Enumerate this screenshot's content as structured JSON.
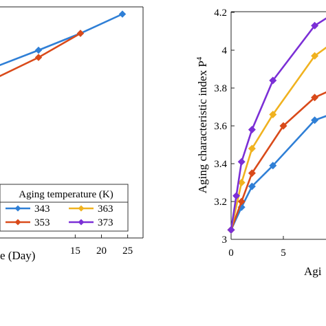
{
  "chart_data": [
    {
      "type": "line",
      "title": "",
      "xlabel": "e (Day)",
      "ylabel": "",
      "xlim": [
        -1.5,
        25
      ],
      "x_ticks": [
        15,
        20,
        25
      ],
      "legend": {
        "title": "Aging temperature (K)",
        "placement": "bottom-right",
        "columns": 2,
        "entries": [
          "343",
          "363",
          "353",
          "373"
        ]
      },
      "series": [
        {
          "name": "343",
          "color": "#2f7fd6",
          "marker": "diamond",
          "x": [
            -1.5,
            8,
            16,
            24
          ],
          "y": [
            0.7,
            0.78,
            0.85,
            0.93
          ]
        },
        {
          "name": "353",
          "color": "#d94a1a",
          "marker": "diamond",
          "x": [
            -1.5,
            8,
            16
          ],
          "y": [
            0.65,
            0.75,
            0.85
          ]
        },
        {
          "name": "363",
          "color": "#f0b21f",
          "marker": "diamond",
          "x": [],
          "y": []
        },
        {
          "name": "373",
          "color": "#7b2fd6",
          "marker": "diamond",
          "x": [],
          "y": []
        }
      ]
    },
    {
      "type": "line",
      "title": "",
      "xlabel": "Agi",
      "ylabel": "Aging characteristic index P",
      "ylabel_superscript": "4",
      "xlim": [
        0,
        10
      ],
      "ylim": [
        3,
        4.2
      ],
      "x_ticks": [
        0,
        5
      ],
      "y_ticks": [
        "3",
        "3.2",
        "3.4",
        "3.6",
        "3.8",
        "4",
        "4.2"
      ],
      "series": [
        {
          "name": "343",
          "color": "#2f7fd6",
          "marker": "diamond",
          "x": [
            0,
            1,
            2,
            4,
            8,
            10
          ],
          "y": [
            3.05,
            3.17,
            3.28,
            3.39,
            3.63,
            3.67
          ]
        },
        {
          "name": "353",
          "color": "#d94a1a",
          "marker": "diamond",
          "x": [
            0,
            1,
            2,
            5,
            8,
            10
          ],
          "y": [
            3.05,
            3.2,
            3.35,
            3.6,
            3.75,
            3.8
          ]
        },
        {
          "name": "363",
          "color": "#f0b21f",
          "marker": "diamond",
          "x": [
            0,
            1,
            2,
            4,
            8,
            10
          ],
          "y": [
            3.05,
            3.3,
            3.48,
            3.66,
            3.97,
            4.05
          ]
        },
        {
          "name": "373",
          "color": "#7b2fd6",
          "marker": "diamond",
          "x": [
            0,
            0.5,
            1,
            2,
            4,
            8,
            10
          ],
          "y": [
            3.05,
            3.23,
            3.41,
            3.58,
            3.84,
            4.13,
            4.2
          ]
        }
      ]
    }
  ]
}
